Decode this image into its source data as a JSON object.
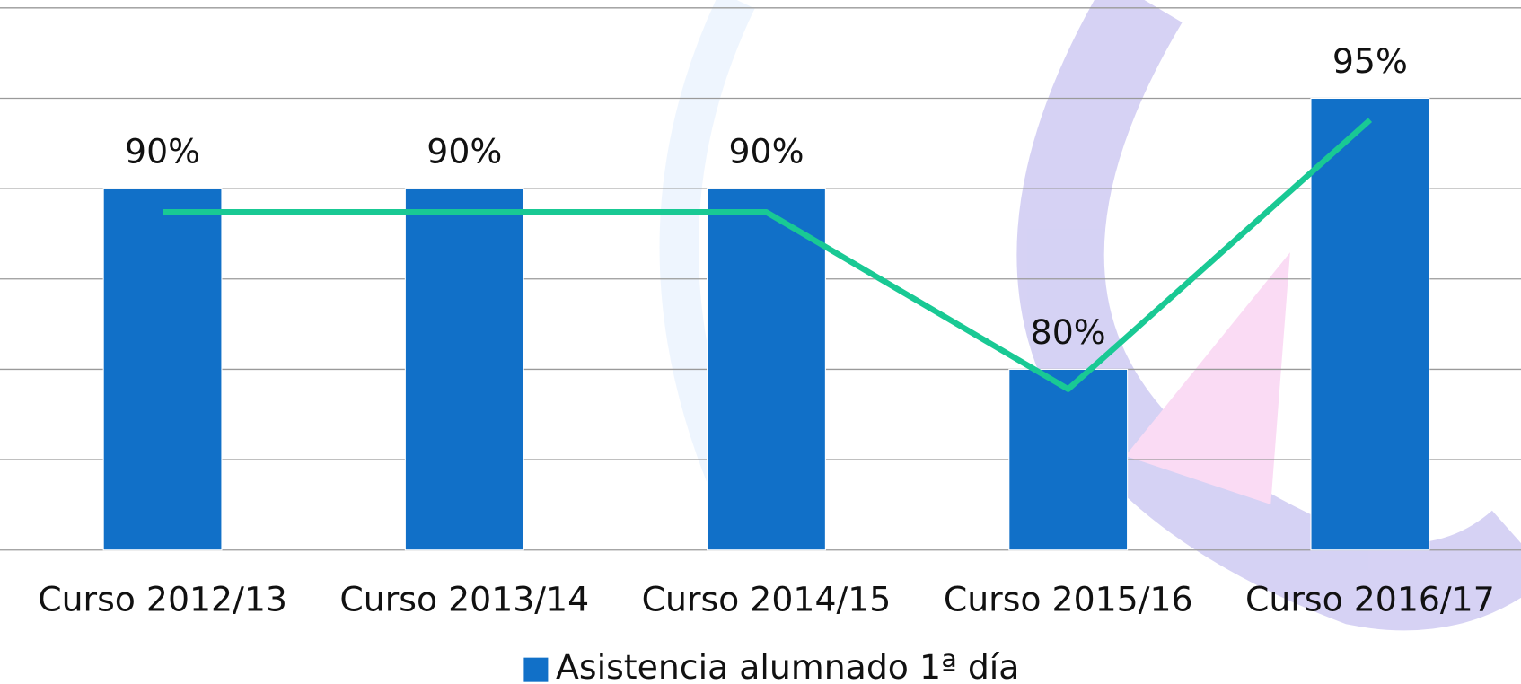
{
  "chart_data": {
    "type": "bar",
    "categories": [
      "Curso 2012/13",
      "Curso 2013/14",
      "Curso 2014/15",
      "Curso 2015/16",
      "Curso 2016/17"
    ],
    "series": [
      {
        "name": "Asistencia alumnado 1ª día",
        "type": "bar",
        "color": "#1170c8",
        "values": [
          90,
          90,
          90,
          80,
          95
        ],
        "value_labels": [
          "90%",
          "90%",
          "90%",
          "80%",
          "95%"
        ]
      },
      {
        "type": "line",
        "color": "#19c994",
        "values": [
          88.7,
          88.7,
          88.7,
          78.9,
          93.8
        ]
      }
    ],
    "ylim": [
      70,
      100
    ],
    "yticks": [
      70,
      75,
      80,
      85,
      90,
      95,
      100
    ],
    "grid": true,
    "legend": "bottom"
  }
}
